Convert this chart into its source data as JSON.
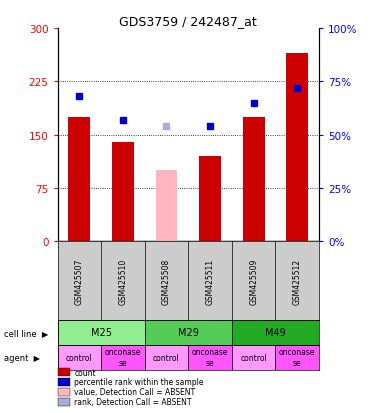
{
  "title": "GDS3759 / 242487_at",
  "samples": [
    "GSM425507",
    "GSM425510",
    "GSM425508",
    "GSM425511",
    "GSM425509",
    "GSM425512"
  ],
  "count_values": [
    175,
    140,
    100,
    120,
    175,
    265
  ],
  "rank_values": [
    68,
    57,
    54,
    54,
    65,
    72
  ],
  "absent_flags": [
    false,
    false,
    true,
    false,
    false,
    false
  ],
  "cell_line_groups": [
    {
      "label": "M25",
      "cols": [
        0,
        1
      ],
      "color": "#90EE90"
    },
    {
      "label": "M29",
      "cols": [
        2,
        3
      ],
      "color": "#55CC55"
    },
    {
      "label": "M49",
      "cols": [
        4,
        5
      ],
      "color": "#22AA22"
    }
  ],
  "agent_labels_display": [
    "control",
    "onconase\nse",
    "control",
    "onconase\nse",
    "control",
    "onconase\nse"
  ],
  "agent_colors": [
    "#FF99FF",
    "#FF55FF",
    "#FF99FF",
    "#FF55FF",
    "#FF99FF",
    "#FF55FF"
  ],
  "ylim_left": [
    0,
    300
  ],
  "ylim_right": [
    0,
    100
  ],
  "yticks_left": [
    0,
    75,
    150,
    225,
    300
  ],
  "yticks_right": [
    0,
    25,
    50,
    75,
    100
  ],
  "bar_color_present": "#CC0000",
  "bar_color_absent": "#FFB6C1",
  "rank_color_present": "#0000CC",
  "rank_color_absent": "#AAAADD",
  "bar_width": 0.5,
  "gsm_bg_color": "#CCCCCC",
  "legend_items": [
    {
      "color": "#CC0000",
      "label": "count"
    },
    {
      "color": "#0000CC",
      "label": "percentile rank within the sample"
    },
    {
      "color": "#FFB6C1",
      "label": "value, Detection Call = ABSENT"
    },
    {
      "color": "#AAAADD",
      "label": "rank, Detection Call = ABSENT"
    }
  ]
}
